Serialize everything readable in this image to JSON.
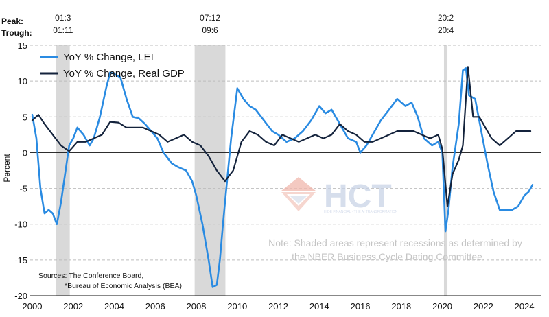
{
  "chart_data": {
    "type": "line",
    "title": "",
    "xlabel": "",
    "ylabel": "Percent",
    "xlim": [
      1999.9,
      2024.8
    ],
    "ylim": [
      -20,
      15
    ],
    "yticks": [
      15,
      10,
      5,
      0,
      -5,
      -10,
      -15,
      -20
    ],
    "xticks": [
      "2000",
      "2002",
      "2004",
      "2006",
      "2008",
      "2010",
      "2012",
      "2014",
      "2016",
      "2018",
      "2020",
      "2022",
      "2024"
    ],
    "grid": "horizontal dashed",
    "legend_position": "top-left",
    "recessions": [
      {
        "start": 2001.17,
        "end": 2001.83,
        "peak": "01:3",
        "trough": "01:11"
      },
      {
        "start": 2007.92,
        "end": 2009.42,
        "peak": "07:12",
        "trough": "09:6"
      },
      {
        "start": 2020.08,
        "end": 2020.25,
        "peak": "20:2",
        "trough": "20:4"
      }
    ],
    "series": [
      {
        "name": "YoY % Change, LEI",
        "color": "#2a8be2",
        "x": [
          2000.0,
          2000.2,
          2000.4,
          2000.6,
          2000.8,
          2001.0,
          2001.2,
          2001.4,
          2001.6,
          2001.8,
          2002.0,
          2002.2,
          2002.5,
          2002.8,
          2003.0,
          2003.3,
          2003.6,
          2003.8,
          2004.0,
          2004.3,
          2004.6,
          2004.9,
          2005.2,
          2005.5,
          2005.8,
          2006.1,
          2006.4,
          2006.8,
          2007.1,
          2007.5,
          2007.8,
          2008.0,
          2008.3,
          2008.6,
          2008.8,
          2009.0,
          2009.15,
          2009.3,
          2009.5,
          2009.7,
          2010.0,
          2010.3,
          2010.6,
          2010.9,
          2011.3,
          2011.7,
          2012.0,
          2012.4,
          2012.8,
          2013.2,
          2013.6,
          2014.0,
          2014.3,
          2014.6,
          2015.0,
          2015.4,
          2015.8,
          2016.0,
          2016.3,
          2016.6,
          2017.0,
          2017.4,
          2017.8,
          2018.2,
          2018.5,
          2018.8,
          2019.1,
          2019.5,
          2019.8,
          2020.0,
          2020.15,
          2020.3,
          2020.5,
          2020.8,
          2021.0,
          2021.15,
          2021.3,
          2021.6,
          2021.9,
          2022.2,
          2022.5,
          2022.8,
          2023.1,
          2023.4,
          2023.7,
          2024.0,
          2024.2,
          2024.4
        ],
        "y": [
          5.3,
          2.0,
          -5.0,
          -8.5,
          -8.0,
          -8.5,
          -10.0,
          -7.0,
          -3.0,
          1.0,
          2.0,
          3.5,
          2.5,
          1.0,
          2.0,
          5.0,
          9.0,
          11.2,
          11.0,
          10.5,
          7.5,
          5.0,
          4.8,
          4.0,
          3.0,
          2.0,
          0.0,
          -1.5,
          -2.0,
          -2.5,
          -4.0,
          -6.0,
          -10.0,
          -15.0,
          -18.8,
          -18.5,
          -15.0,
          -10.0,
          -4.0,
          2.0,
          9.0,
          7.5,
          6.5,
          6.0,
          4.5,
          3.0,
          2.5,
          1.5,
          2.0,
          3.0,
          4.5,
          6.5,
          5.5,
          6.0,
          4.0,
          2.0,
          1.5,
          0.0,
          1.0,
          2.5,
          4.5,
          6.0,
          7.5,
          6.5,
          7.0,
          5.0,
          2.0,
          1.0,
          1.5,
          0.0,
          -11.0,
          -8.0,
          -2.0,
          4.0,
          11.5,
          11.8,
          8.0,
          7.5,
          3.0,
          -1.5,
          -5.5,
          -8.0,
          -8.0,
          -8.0,
          -7.5,
          -6.0,
          -5.5,
          -4.5
        ]
      },
      {
        "name": "YoY % Change, Real GDP",
        "color": "#14233c",
        "x": [
          2000.0,
          2000.3,
          2000.6,
          2001.0,
          2001.4,
          2001.8,
          2002.2,
          2002.6,
          2003.0,
          2003.4,
          2003.8,
          2004.2,
          2004.6,
          2005.0,
          2005.4,
          2005.8,
          2006.2,
          2006.6,
          2007.0,
          2007.4,
          2007.8,
          2008.2,
          2008.6,
          2009.0,
          2009.4,
          2009.8,
          2010.2,
          2010.6,
          2011.0,
          2011.4,
          2011.8,
          2012.2,
          2012.6,
          2013.0,
          2013.4,
          2013.8,
          2014.2,
          2014.6,
          2015.0,
          2015.4,
          2015.8,
          2016.2,
          2016.6,
          2017.0,
          2017.4,
          2017.8,
          2018.2,
          2018.6,
          2019.0,
          2019.4,
          2019.8,
          2020.0,
          2020.25,
          2020.5,
          2020.8,
          2021.0,
          2021.25,
          2021.5,
          2021.8,
          2022.0,
          2022.4,
          2022.8,
          2023.2,
          2023.6,
          2024.0,
          2024.3
        ],
        "y": [
          4.5,
          5.3,
          4.0,
          2.5,
          1.0,
          0.2,
          1.5,
          1.5,
          2.0,
          2.5,
          4.3,
          4.2,
          3.5,
          3.5,
          3.5,
          3.0,
          2.5,
          1.5,
          2.0,
          2.5,
          1.5,
          1.0,
          -0.5,
          -2.5,
          -4.0,
          -2.5,
          1.5,
          3.0,
          2.5,
          1.5,
          1.0,
          2.5,
          2.0,
          1.5,
          2.0,
          2.5,
          2.0,
          2.5,
          4.0,
          3.0,
          2.5,
          1.5,
          1.5,
          2.0,
          2.5,
          3.0,
          3.0,
          3.0,
          2.5,
          2.0,
          2.5,
          0.5,
          -7.5,
          -3.0,
          -1.0,
          1.0,
          12.0,
          5.0,
          5.0,
          4.0,
          2.0,
          1.0,
          2.0,
          3.0,
          3.0,
          3.0
        ]
      }
    ],
    "annotations": {
      "peak_label": "Peak:",
      "trough_label": "Trough:",
      "note_line1": "Note: Shaded areas represent recessions as determined by",
      "note_line2": "the NBER Business Cycle Dating Committee.",
      "source_line1": "Sources: The Conference Board,",
      "source_line2": "*Bureau of Economic Analysis (BEA)"
    }
  },
  "watermark": {
    "text": "HCT",
    "subtext": "HIDE FINANCIAL · THE AI TRANSFORMATION",
    "color": "#c9d3e6",
    "accent": "#f1b8ad"
  }
}
